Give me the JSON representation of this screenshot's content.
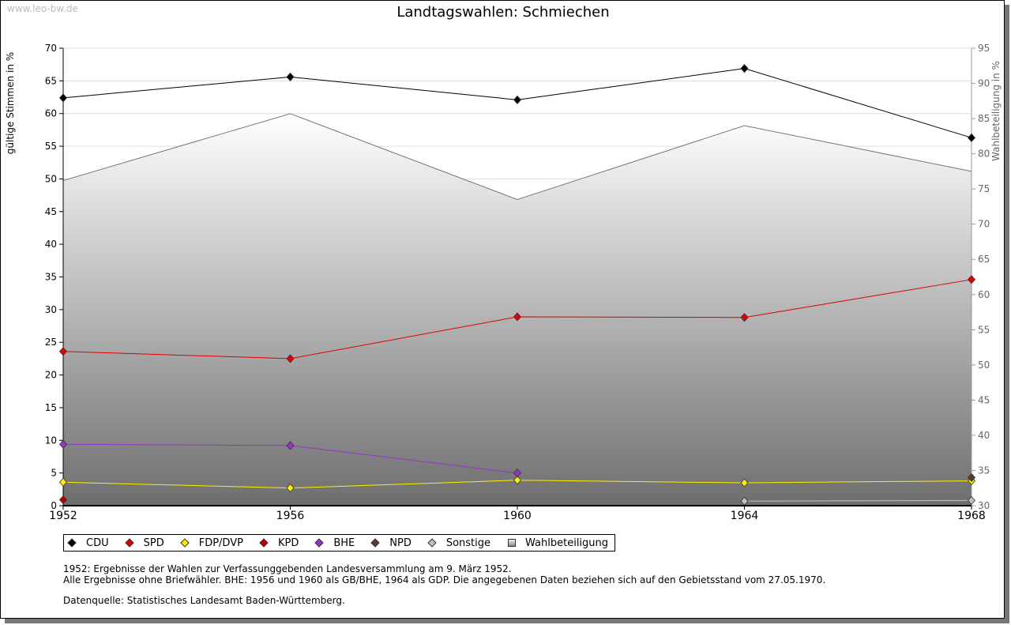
{
  "watermark": "www.leo-bw.de",
  "chart_data": {
    "type": "line",
    "title": "Landtagswahlen: Schmiechen",
    "ylabel": "gültige Stimmen in %",
    "y2label": "Wahlbeteiligung in %",
    "ylim": [
      0,
      70
    ],
    "y2lim": [
      30,
      95
    ],
    "yticks": [
      0,
      5,
      10,
      15,
      20,
      25,
      30,
      35,
      40,
      45,
      50,
      55,
      60,
      65,
      70
    ],
    "y2ticks": [
      30,
      35,
      40,
      45,
      50,
      55,
      60,
      65,
      70,
      75,
      80,
      85,
      90,
      95
    ],
    "x": [
      "1952",
      "1956",
      "1960",
      "1964",
      "1968"
    ],
    "grid": true,
    "legend_position": "bottom",
    "series": [
      {
        "name": "CDU",
        "color": "#000000",
        "values": [
          62.4,
          65.6,
          62.1,
          66.9,
          56.3
        ]
      },
      {
        "name": "SPD",
        "color": "#e00000",
        "values": [
          23.6,
          22.5,
          28.9,
          28.8,
          34.6
        ]
      },
      {
        "name": "FDP/DVP",
        "color": "#ffee00",
        "values": [
          3.6,
          2.7,
          3.9,
          3.5,
          3.8
        ]
      },
      {
        "name": "KPD",
        "color": "#c00000",
        "values": [
          0.9,
          null,
          null,
          null,
          null
        ]
      },
      {
        "name": "BHE",
        "color": "#9933cc",
        "values": [
          9.4,
          9.2,
          5.0,
          null,
          null
        ]
      },
      {
        "name": "NPD",
        "color": "#5a3a2a",
        "values": [
          null,
          null,
          null,
          null,
          4.3
        ]
      },
      {
        "name": "Sonstige",
        "color": "#c0c0c0",
        "values": [
          null,
          null,
          null,
          0.7,
          0.8
        ]
      }
    ],
    "turnout": {
      "name": "Wahlbeteiligung",
      "values": [
        76.2,
        85.7,
        73.5,
        84.0,
        77.5
      ]
    }
  },
  "notes": [
    "1952: Ergebnisse der Wahlen zur Verfassunggebenden Landesversammlung am 9. März 1952.",
    "Alle Ergebnisse ohne Briefwähler. BHE: 1956 und 1960 als GB/BHE, 1964 als GDP. Die angegebenen Daten beziehen sich auf den Gebietsstand vom 27.05.1970.",
    "Datenquelle: Statistisches Landesamt Baden-Württemberg."
  ]
}
